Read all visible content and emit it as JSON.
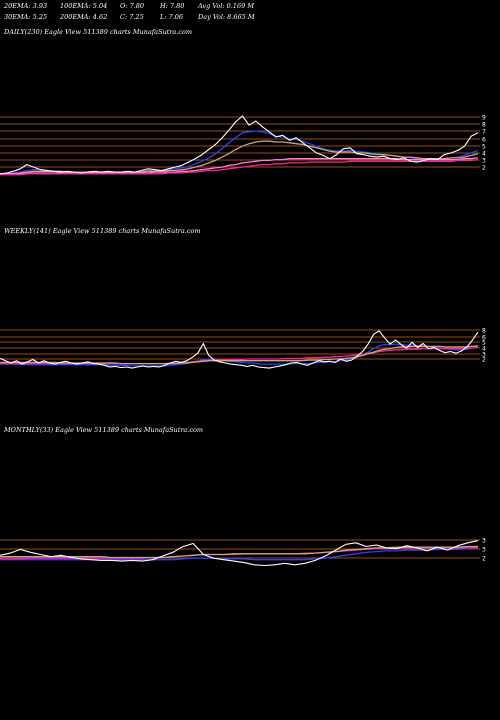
{
  "header": {
    "row1": [
      "20EMA: 3.93",
      "100EMA: 5.04",
      "O: 7.80",
      "H: 7.80",
      "Avg Vol: 0.169 M"
    ],
    "row2": [
      "30EMA: 5.25",
      "200EMA: 4.62",
      "C: 7.25",
      "L: 7.06",
      "Day Vol: 8.665 M"
    ]
  },
  "colors": {
    "background": "#000000",
    "price": "#ffffff",
    "ema_blue": "#2a3fff",
    "ema_magenta": "#ff1fa0",
    "ema_pink": "#ff7fd0",
    "ema_tan": "#c8a878",
    "level_line": "#c8641e"
  },
  "chart_data": [
    {
      "type": "line",
      "title": "DAILY(230) Eagle   View  511389 charts MunafaSutra.com",
      "y_ticks": [
        "9",
        "8",
        "7",
        "6",
        "5",
        "4",
        "3",
        "2"
      ],
      "ylim": [
        1.5,
        9.5
      ],
      "series": [
        {
          "name": "",
          "color": "#ffffff",
          "values": [
            2.0,
            2.1,
            2.3,
            2.6,
            3.1,
            2.8,
            2.5,
            2.4,
            2.3,
            2.2,
            2.3,
            2.2,
            2.1,
            2.2,
            2.3,
            2.2,
            2.3,
            2.2,
            2.2,
            2.3,
            2.2,
            2.4,
            2.6,
            2.5,
            2.4,
            2.6,
            2.8,
            3.0,
            3.4,
            3.8,
            4.3,
            4.9,
            5.5,
            6.3,
            7.2,
            8.2,
            8.9,
            7.8,
            8.3,
            7.6,
            7.0,
            6.4,
            6.6,
            6.0,
            6.3,
            5.7,
            5.1,
            4.5,
            4.2,
            3.8,
            4.3,
            5.0,
            5.1,
            4.4,
            4.3,
            4.1,
            4.0,
            4.1,
            3.8,
            3.7,
            3.9,
            3.5,
            3.4,
            3.6,
            3.8,
            3.7,
            4.3,
            4.5,
            4.8,
            5.3,
            6.5,
            6.9
          ]
        },
        {
          "name": "",
          "color": "#2a3fff",
          "values": [
            2.0,
            2.0,
            2.1,
            2.2,
            2.4,
            2.5,
            2.5,
            2.4,
            2.3,
            2.3,
            2.2,
            2.2,
            2.2,
            2.2,
            2.2,
            2.2,
            2.2,
            2.2,
            2.2,
            2.2,
            2.2,
            2.3,
            2.4,
            2.4,
            2.4,
            2.5,
            2.6,
            2.7,
            2.9,
            3.2,
            3.5,
            3.9,
            4.4,
            5.0,
            5.7,
            6.3,
            6.9,
            7.0,
            7.1,
            7.0,
            6.8,
            6.5,
            6.4,
            6.2,
            6.1,
            5.9,
            5.6,
            5.3,
            5.0,
            4.8,
            4.7,
            4.7,
            4.8,
            4.7,
            4.6,
            4.5,
            4.4,
            4.3,
            4.2,
            4.1,
            4.0,
            3.9,
            3.8,
            3.7,
            3.7,
            3.7,
            3.8,
            3.9,
            4.0,
            4.2,
            4.5,
            4.8
          ]
        },
        {
          "name": "",
          "color": "#c8a878",
          "values": [
            2.0,
            2.0,
            2.0,
            2.1,
            2.2,
            2.3,
            2.3,
            2.3,
            2.3,
            2.3,
            2.2,
            2.2,
            2.2,
            2.2,
            2.2,
            2.2,
            2.2,
            2.2,
            2.2,
            2.2,
            2.2,
            2.2,
            2.3,
            2.3,
            2.3,
            2.4,
            2.4,
            2.5,
            2.6,
            2.8,
            3.0,
            3.3,
            3.6,
            4.0,
            4.4,
            4.9,
            5.3,
            5.6,
            5.8,
            5.9,
            5.9,
            5.8,
            5.8,
            5.7,
            5.6,
            5.5,
            5.3,
            5.1,
            4.9,
            4.7,
            4.6,
            4.6,
            4.6,
            4.5,
            4.5,
            4.4,
            4.3,
            4.3,
            4.2,
            4.1,
            4.0,
            4.0,
            3.9,
            3.8,
            3.8,
            3.8,
            3.8,
            3.9,
            3.9,
            4.0,
            4.2,
            4.4
          ]
        },
        {
          "name": "",
          "color": "#ff7fd0",
          "values": [
            2.0,
            2.0,
            2.0,
            2.0,
            2.1,
            2.1,
            2.1,
            2.1,
            2.1,
            2.1,
            2.1,
            2.1,
            2.1,
            2.1,
            2.1,
            2.1,
            2.1,
            2.1,
            2.1,
            2.1,
            2.1,
            2.1,
            2.1,
            2.2,
            2.2,
            2.2,
            2.2,
            2.3,
            2.3,
            2.4,
            2.5,
            2.6,
            2.7,
            2.8,
            3.0,
            3.1,
            3.3,
            3.4,
            3.5,
            3.6,
            3.6,
            3.7,
            3.7,
            3.8,
            3.8,
            3.8,
            3.8,
            3.8,
            3.8,
            3.8,
            3.8,
            3.8,
            3.8,
            3.8,
            3.8,
            3.8,
            3.8,
            3.8,
            3.8,
            3.8,
            3.7,
            3.7,
            3.7,
            3.7,
            3.7,
            3.7,
            3.7,
            3.7,
            3.7,
            3.8,
            3.8,
            3.9
          ]
        },
        {
          "name": "",
          "color": "#ff1fa0",
          "values": [
            1.9,
            1.9,
            1.9,
            1.9,
            2.0,
            2.0,
            2.0,
            2.0,
            2.0,
            2.0,
            2.0,
            2.0,
            2.0,
            2.0,
            2.0,
            2.0,
            2.0,
            2.0,
            2.0,
            2.0,
            2.0,
            2.0,
            2.0,
            2.0,
            2.0,
            2.1,
            2.1,
            2.1,
            2.2,
            2.2,
            2.3,
            2.4,
            2.4,
            2.5,
            2.6,
            2.7,
            2.8,
            2.9,
            3.0,
            3.1,
            3.1,
            3.2,
            3.2,
            3.3,
            3.3,
            3.3,
            3.4,
            3.4,
            3.4,
            3.4,
            3.4,
            3.4,
            3.5,
            3.5,
            3.5,
            3.5,
            3.5,
            3.5,
            3.5,
            3.5,
            3.5,
            3.5,
            3.5,
            3.5,
            3.5,
            3.5,
            3.5,
            3.5,
            3.6,
            3.6,
            3.6,
            3.7
          ]
        }
      ]
    },
    {
      "type": "line",
      "title": "WEEKLY(141) Eagle   View  511389 charts MunafaSutra.com",
      "y_ticks": [
        "8",
        "6",
        "5",
        "4",
        "3",
        "2"
      ],
      "ylim": [
        1.5,
        9.0
      ],
      "series": [
        {
          "name": "",
          "color": "#ffffff",
          "values": [
            3.0,
            2.6,
            2.2,
            2.6,
            2.0,
            2.4,
            2.8,
            2.2,
            2.6,
            2.2,
            2.0,
            2.3,
            2.5,
            2.2,
            2.0,
            2.2,
            2.4,
            2.1,
            2.0,
            1.8,
            1.5,
            1.6,
            1.4,
            1.5,
            1.3,
            1.5,
            1.7,
            1.5,
            1.6,
            1.5,
            1.8,
            2.2,
            2.5,
            2.3,
            2.6,
            3.2,
            3.9,
            5.6,
            3.5,
            2.7,
            2.4,
            2.2,
            2.0,
            1.9,
            1.8,
            1.6,
            1.8,
            1.5,
            1.4,
            1.3,
            1.5,
            1.7,
            1.9,
            2.2,
            2.3,
            2.0,
            1.8,
            2.2,
            2.6,
            2.4,
            2.5,
            2.3,
            2.9,
            2.5,
            2.7,
            3.4,
            4.2,
            5.5,
            7.2,
            7.8,
            6.6,
            5.5,
            6.2,
            5.4,
            4.8,
            5.8,
            4.9,
            5.6,
            4.7,
            4.9,
            4.4,
            4.0,
            4.2,
            3.9,
            4.3,
            5.0,
            6.2,
            7.6
          ]
        },
        {
          "name": "",
          "color": "#2a3fff",
          "values": [
            2.0,
            2.0,
            2.0,
            2.0,
            1.9,
            1.9,
            1.9,
            1.9,
            1.9,
            1.9,
            1.9,
            1.9,
            1.9,
            1.9,
            1.9,
            1.9,
            1.9,
            1.9,
            1.9,
            1.9,
            1.8,
            1.8,
            1.8,
            1.8,
            1.7,
            1.7,
            1.7,
            1.7,
            1.7,
            1.7,
            1.7,
            1.8,
            1.9,
            2.0,
            2.1,
            2.3,
            2.5,
            2.8,
            2.9,
            2.8,
            2.7,
            2.6,
            2.5,
            2.4,
            2.3,
            2.2,
            2.2,
            2.1,
            2.0,
            2.0,
            2.0,
            2.0,
            2.0,
            2.1,
            2.1,
            2.1,
            2.1,
            2.2,
            2.3,
            2.3,
            2.4,
            2.4,
            2.6,
            2.7,
            2.9,
            3.2,
            3.6,
            4.1,
            4.7,
            5.2,
            5.4,
            5.4,
            5.5,
            5.4,
            5.3,
            5.3,
            5.2,
            5.2,
            5.1,
            5.0,
            4.9,
            4.7,
            4.6,
            4.5,
            4.5,
            4.6,
            4.8,
            5.2
          ]
        },
        {
          "name": "",
          "color": "#ff1fa0",
          "values": [
            2.1,
            2.1,
            2.1,
            2.1,
            2.1,
            2.1,
            2.1,
            2.1,
            2.1,
            2.1,
            2.1,
            2.1,
            2.1,
            2.1,
            2.1,
            2.1,
            2.1,
            2.1,
            2.1,
            2.1,
            2.1,
            2.1,
            2.1,
            2.1,
            2.1,
            2.1,
            2.1,
            2.1,
            2.1,
            2.1,
            2.1,
            2.2,
            2.2,
            2.3,
            2.3,
            2.4,
            2.5,
            2.6,
            2.7,
            2.7,
            2.8,
            2.8,
            2.8,
            2.8,
            2.8,
            2.9,
            2.9,
            2.9,
            2.9,
            2.9,
            2.9,
            2.9,
            3.0,
            3.0,
            3.0,
            3.0,
            3.1,
            3.1,
            3.1,
            3.2,
            3.2,
            3.3,
            3.3,
            3.4,
            3.5,
            3.6,
            3.7,
            3.9,
            4.0,
            4.2,
            4.3,
            4.4,
            4.5,
            4.5,
            4.6,
            4.6,
            4.6,
            4.7,
            4.7,
            4.7,
            4.7,
            4.7,
            4.7,
            4.7,
            4.7,
            4.8,
            4.8,
            4.9
          ]
        },
        {
          "name": "",
          "color": "#c8a878",
          "values": [
            2.3,
            2.3,
            2.3,
            2.3,
            2.3,
            2.3,
            2.3,
            2.3,
            2.3,
            2.3,
            2.3,
            2.2,
            2.2,
            2.2,
            2.2,
            2.2,
            2.2,
            2.2,
            2.2,
            2.2,
            2.2,
            2.2,
            2.1,
            2.1,
            2.1,
            2.1,
            2.1,
            2.1,
            2.1,
            2.1,
            2.1,
            2.1,
            2.1,
            2.2,
            2.2,
            2.3,
            2.4,
            2.5,
            2.6,
            2.6,
            2.6,
            2.6,
            2.6,
            2.6,
            2.6,
            2.6,
            2.6,
            2.6,
            2.6,
            2.6,
            2.6,
            2.6,
            2.6,
            2.6,
            2.6,
            2.6,
            2.7,
            2.7,
            2.7,
            2.8,
            2.8,
            2.9,
            2.9,
            3.0,
            3.1,
            3.3,
            3.5,
            3.8,
            4.1,
            4.4,
            4.6,
            4.7,
            4.9,
            5.0,
            5.0,
            5.1,
            5.1,
            5.1,
            5.1,
            5.1,
            5.1,
            5.0,
            5.0,
            5.0,
            5.0,
            5.0,
            5.1,
            5.2
          ]
        }
      ]
    },
    {
      "type": "line",
      "title": "MONTHLY(33) Eagle   View  511389 charts MunafaSutra.com",
      "y_ticks": [
        "3",
        "3",
        "2"
      ],
      "ylim": [
        1.0,
        5.5
      ],
      "series": [
        {
          "name": "",
          "color": "#ffffff",
          "values": [
            2.6,
            2.9,
            3.4,
            3.0,
            2.7,
            2.4,
            2.6,
            2.3,
            2.1,
            2.0,
            1.9,
            1.9,
            1.8,
            1.9,
            1.8,
            2.0,
            2.5,
            3.0,
            3.8,
            4.2,
            2.7,
            2.2,
            2.0,
            1.8,
            1.6,
            1.3,
            1.2,
            1.3,
            1.5,
            1.3,
            1.5,
            1.9,
            2.5,
            3.3,
            4.1,
            4.3,
            3.8,
            4.0,
            3.6,
            3.5,
            3.9,
            3.6,
            3.2,
            3.7,
            3.3,
            3.9,
            4.3,
            4.6
          ]
        },
        {
          "name": "",
          "color": "#2a3fff",
          "values": [
            2.0,
            2.0,
            2.0,
            2.0,
            2.0,
            2.0,
            2.0,
            2.0,
            2.0,
            2.0,
            2.0,
            2.0,
            2.0,
            2.0,
            2.0,
            2.0,
            2.0,
            2.0,
            2.1,
            2.2,
            2.2,
            2.2,
            2.1,
            2.1,
            2.1,
            2.0,
            2.0,
            2.0,
            2.0,
            2.0,
            2.0,
            2.1,
            2.2,
            2.4,
            2.6,
            2.8,
            3.0,
            3.1,
            3.2,
            3.2,
            3.3,
            3.3,
            3.3,
            3.4,
            3.4,
            3.4,
            3.5,
            3.6
          ]
        },
        {
          "name": "",
          "color": "#ff1fa0",
          "values": [
            2.1,
            2.1,
            2.1,
            2.2,
            2.2,
            2.2,
            2.2,
            2.2,
            2.2,
            2.2,
            2.2,
            2.2,
            2.2,
            2.2,
            2.2,
            2.3,
            2.3,
            2.4,
            2.5,
            2.6,
            2.7,
            2.7,
            2.7,
            2.7,
            2.8,
            2.8,
            2.8,
            2.8,
            2.8,
            2.8,
            2.9,
            2.9,
            3.0,
            3.1,
            3.2,
            3.3,
            3.4,
            3.5,
            3.5,
            3.6,
            3.6,
            3.6,
            3.6,
            3.6,
            3.6,
            3.6,
            3.6,
            3.7
          ]
        },
        {
          "name": "",
          "color": "#c8a878",
          "values": [
            2.4,
            2.4,
            2.4,
            2.4,
            2.4,
            2.4,
            2.4,
            2.4,
            2.4,
            2.4,
            2.4,
            2.3,
            2.3,
            2.3,
            2.3,
            2.3,
            2.3,
            2.4,
            2.5,
            2.6,
            2.7,
            2.7,
            2.7,
            2.8,
            2.8,
            2.8,
            2.8,
            2.8,
            2.8,
            2.8,
            2.8,
            2.9,
            3.0,
            3.1,
            3.3,
            3.4,
            3.5,
            3.6,
            3.6,
            3.7,
            3.7,
            3.7,
            3.7,
            3.7,
            3.7,
            3.7,
            3.8,
            3.8
          ]
        }
      ]
    }
  ]
}
